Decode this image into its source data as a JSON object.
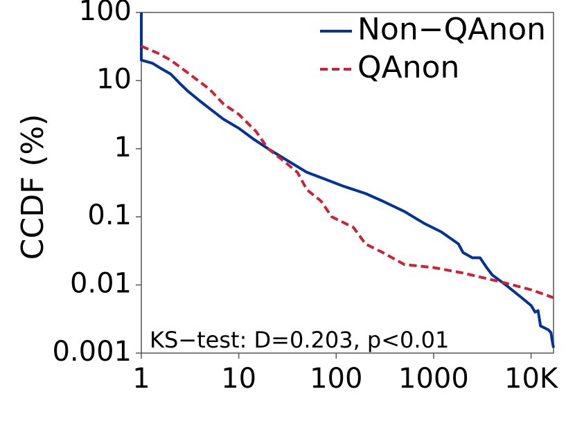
{
  "chart_data": {
    "type": "line",
    "title": "",
    "xlabel": "",
    "ylabel": "CCDF (%)",
    "xscale": "log",
    "yscale": "log",
    "xlim": [
      1,
      17000
    ],
    "ylim": [
      0.001,
      100
    ],
    "x_ticks": [
      {
        "value": 1,
        "label": "1"
      },
      {
        "value": 10,
        "label": "10"
      },
      {
        "value": 100,
        "label": "100"
      },
      {
        "value": 1000,
        "label": "1000"
      },
      {
        "value": 10000,
        "label": "10K"
      }
    ],
    "y_ticks": [
      {
        "value": 0.001,
        "label": "0.001"
      },
      {
        "value": 0.01,
        "label": "0.01"
      },
      {
        "value": 0.1,
        "label": "0.1"
      },
      {
        "value": 1,
        "label": "1"
      },
      {
        "value": 10,
        "label": "10"
      },
      {
        "value": 100,
        "label": "100"
      }
    ],
    "legend_position": "top-right",
    "annotation": "KS−test: D=0.203, p<0.01",
    "series": [
      {
        "name": "Non−QAnon",
        "color": "#003399",
        "style": "solid",
        "points": [
          [
            1,
            100
          ],
          [
            1,
            20
          ],
          [
            1.3,
            18
          ],
          [
            1.6,
            15
          ],
          [
            2,
            12.5
          ],
          [
            2.5,
            9
          ],
          [
            3,
            7
          ],
          [
            4,
            5
          ],
          [
            5,
            3.9
          ],
          [
            7,
            2.7
          ],
          [
            10,
            2
          ],
          [
            14,
            1.4
          ],
          [
            20,
            1
          ],
          [
            30,
            0.7
          ],
          [
            50,
            0.45
          ],
          [
            80,
            0.35
          ],
          [
            120,
            0.28
          ],
          [
            200,
            0.22
          ],
          [
            300,
            0.17
          ],
          [
            500,
            0.12
          ],
          [
            800,
            0.08
          ],
          [
            1200,
            0.06
          ],
          [
            1800,
            0.04
          ],
          [
            2000,
            0.03
          ],
          [
            2500,
            0.025
          ],
          [
            3000,
            0.025
          ],
          [
            3500,
            0.018
          ],
          [
            4000,
            0.014
          ],
          [
            5500,
            0.01
          ],
          [
            8000,
            0.0065
          ],
          [
            10000,
            0.005
          ],
          [
            11000,
            0.004
          ],
          [
            11800,
            0.0042
          ],
          [
            12500,
            0.0025
          ],
          [
            15000,
            0.0022
          ],
          [
            16000,
            0.002
          ],
          [
            16500,
            0.0015
          ],
          [
            17000,
            0.0012
          ]
        ]
      },
      {
        "name": "QAnon",
        "color": "#cc2233",
        "style": "dashed",
        "points": [
          [
            1,
            32
          ],
          [
            1.5,
            25
          ],
          [
            2,
            20
          ],
          [
            3,
            13
          ],
          [
            5,
            7.5
          ],
          [
            7,
            4.5
          ],
          [
            10,
            3.2
          ],
          [
            15,
            1.8
          ],
          [
            20,
            1
          ],
          [
            30,
            0.63
          ],
          [
            40,
            0.45
          ],
          [
            50,
            0.25
          ],
          [
            70,
            0.17
          ],
          [
            90,
            0.1
          ],
          [
            150,
            0.07
          ],
          [
            200,
            0.04
          ],
          [
            300,
            0.03
          ],
          [
            500,
            0.02
          ],
          [
            1000,
            0.018
          ],
          [
            2000,
            0.015
          ],
          [
            5000,
            0.011
          ],
          [
            10000,
            0.0085
          ],
          [
            17000,
            0.0065
          ]
        ]
      }
    ]
  }
}
